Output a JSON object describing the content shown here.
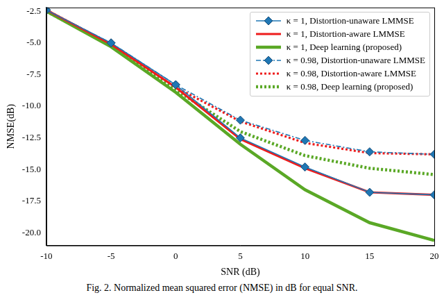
{
  "chart_data": {
    "type": "line",
    "caption": "Fig. 2. Normalized mean squared error (NMSE) in dB for equal SNR.",
    "x_label": "SNR (dB)",
    "y_label": "NMSE(dB)",
    "x": [
      -10,
      -5,
      0,
      5,
      10,
      15,
      20
    ],
    "xlim": [
      -10,
      20
    ],
    "xticks": [
      -10,
      -5,
      0,
      5,
      10,
      15,
      20
    ],
    "ylim": [
      -21.0,
      -2.2
    ],
    "yticks": [
      {
        "value": -20,
        "label": "-20.0"
      },
      -17.5,
      {
        "value": -15,
        "label": "-15.0"
      },
      -12.5,
      {
        "value": -10,
        "label": "-10.0"
      },
      -7.5,
      {
        "value": -5,
        "label": "-5.0"
      },
      -2.5
    ],
    "grid": false,
    "legend": "upper right",
    "series": [
      {
        "name": "κ = 1, Distortion-unaware LMMSE",
        "color": "#1f77b4",
        "marker": "diamond",
        "line_style": "solid",
        "values": [
          -2.4,
          -5.0,
          -8.3,
          -12.5,
          -14.8,
          -16.8,
          -17.0
        ]
      },
      {
        "name": "κ = 1, Distortion-aware LMMSE",
        "color": "#ee1c1c",
        "marker": "none",
        "line_style": "solid",
        "values": [
          -2.4,
          -5.1,
          -8.5,
          -12.6,
          -14.9,
          -16.8,
          -17.0
        ]
      },
      {
        "name": "κ = 1, Deep learning (proposed)",
        "color": "#5aa826",
        "marker": "none",
        "line_style": "solid",
        "values": [
          -2.5,
          -5.3,
          -8.9,
          -13.0,
          -16.6,
          -19.2,
          -20.6
        ]
      },
      {
        "name": "κ = 0.98, Distortion-unaware LMMSE",
        "color": "#1f77b4",
        "marker": "diamond",
        "line_style": "dashdot",
        "values": [
          -2.4,
          -5.0,
          -8.3,
          -11.1,
          -12.7,
          -13.6,
          -13.8
        ]
      },
      {
        "name": "κ = 0.98, Distortion-aware LMMSE",
        "color": "#ee1c1c",
        "marker": "none",
        "line_style": "dotted",
        "values": [
          -2.4,
          -5.1,
          -8.5,
          -11.2,
          -12.9,
          -13.7,
          -13.8
        ]
      },
      {
        "name": "κ = 0.98, Deep learning (proposed)",
        "color": "#5aa826",
        "marker": "none",
        "line_style": "dotted",
        "values": [
          -2.5,
          -5.2,
          -8.7,
          -12.0,
          -13.9,
          -14.9,
          -15.4
        ]
      }
    ]
  }
}
